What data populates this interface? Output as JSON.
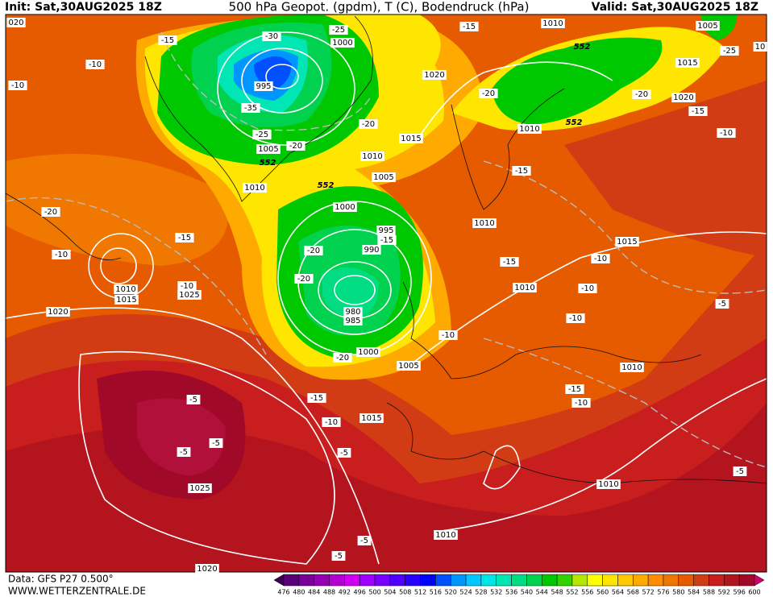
{
  "header": {
    "init": "Init: Sat,30AUG2025 18Z",
    "title": "500 hPa Geopot. (gpdm), T (C), Bodendruck (hPa)",
    "valid": "Valid: Sat,30AUG2025 18Z"
  },
  "footer": {
    "data_source": "Data: GFS P27 0.500°",
    "website": "WWW.WETTERZENTRALE.DE"
  },
  "colorbar": {
    "ticks": [
      476,
      480,
      484,
      488,
      492,
      496,
      500,
      504,
      508,
      512,
      516,
      520,
      524,
      528,
      532,
      536,
      540,
      544,
      548,
      552,
      556,
      560,
      564,
      568,
      572,
      576,
      580,
      584,
      588,
      592,
      596,
      600
    ],
    "colors": [
      "#3c0050",
      "#5a0078",
      "#780096",
      "#9600b4",
      "#b400d2",
      "#d200f0",
      "#a000ff",
      "#7800ff",
      "#5000ff",
      "#2800ff",
      "#0000ff",
      "#0050ff",
      "#0096ff",
      "#00c8ff",
      "#00e6e6",
      "#00e6b4",
      "#00dc82",
      "#00d250",
      "#00c800",
      "#32d200",
      "#b4e600",
      "#ffff00",
      "#ffe600",
      "#ffc800",
      "#ffaa00",
      "#ff8c00",
      "#f07800",
      "#e65a00",
      "#d23c14",
      "#c81e1e",
      "#b4141e",
      "#a00a28",
      "#d2006e"
    ]
  },
  "pressure_labels": [
    "020",
    "1000",
    "995",
    "1005",
    "1010",
    "1010",
    "1005",
    "1015",
    "1020",
    "1010",
    "1005",
    "1015",
    "1020",
    "1010",
    "1000",
    "995",
    "990",
    "980",
    "985",
    "1000",
    "1005",
    "1010",
    "1015",
    "1010",
    "1010",
    "1015",
    "1025",
    "1020",
    "1015",
    "1010",
    "1025",
    "1010",
    "1010",
    "1020",
    "10"
  ],
  "temperature_labels": [
    "-15",
    "-30",
    "-25",
    "-10",
    "-10",
    "-35",
    "-25",
    "-20",
    "-20",
    "-20",
    "-15",
    "-20",
    "-25",
    "-15",
    "-10",
    "-15",
    "-20",
    "-15",
    "-10",
    "-15",
    "-20",
    "-20",
    "-10",
    "-15",
    "-10",
    "-10",
    "-10",
    "-5",
    "-10",
    "-20",
    "-15",
    "-10",
    "-15",
    "-10",
    "-5",
    "-5",
    "-5",
    "-5",
    "-5",
    "-5",
    "-5"
  ],
  "height_labels": [
    "552",
    "552",
    "552",
    "552"
  ]
}
